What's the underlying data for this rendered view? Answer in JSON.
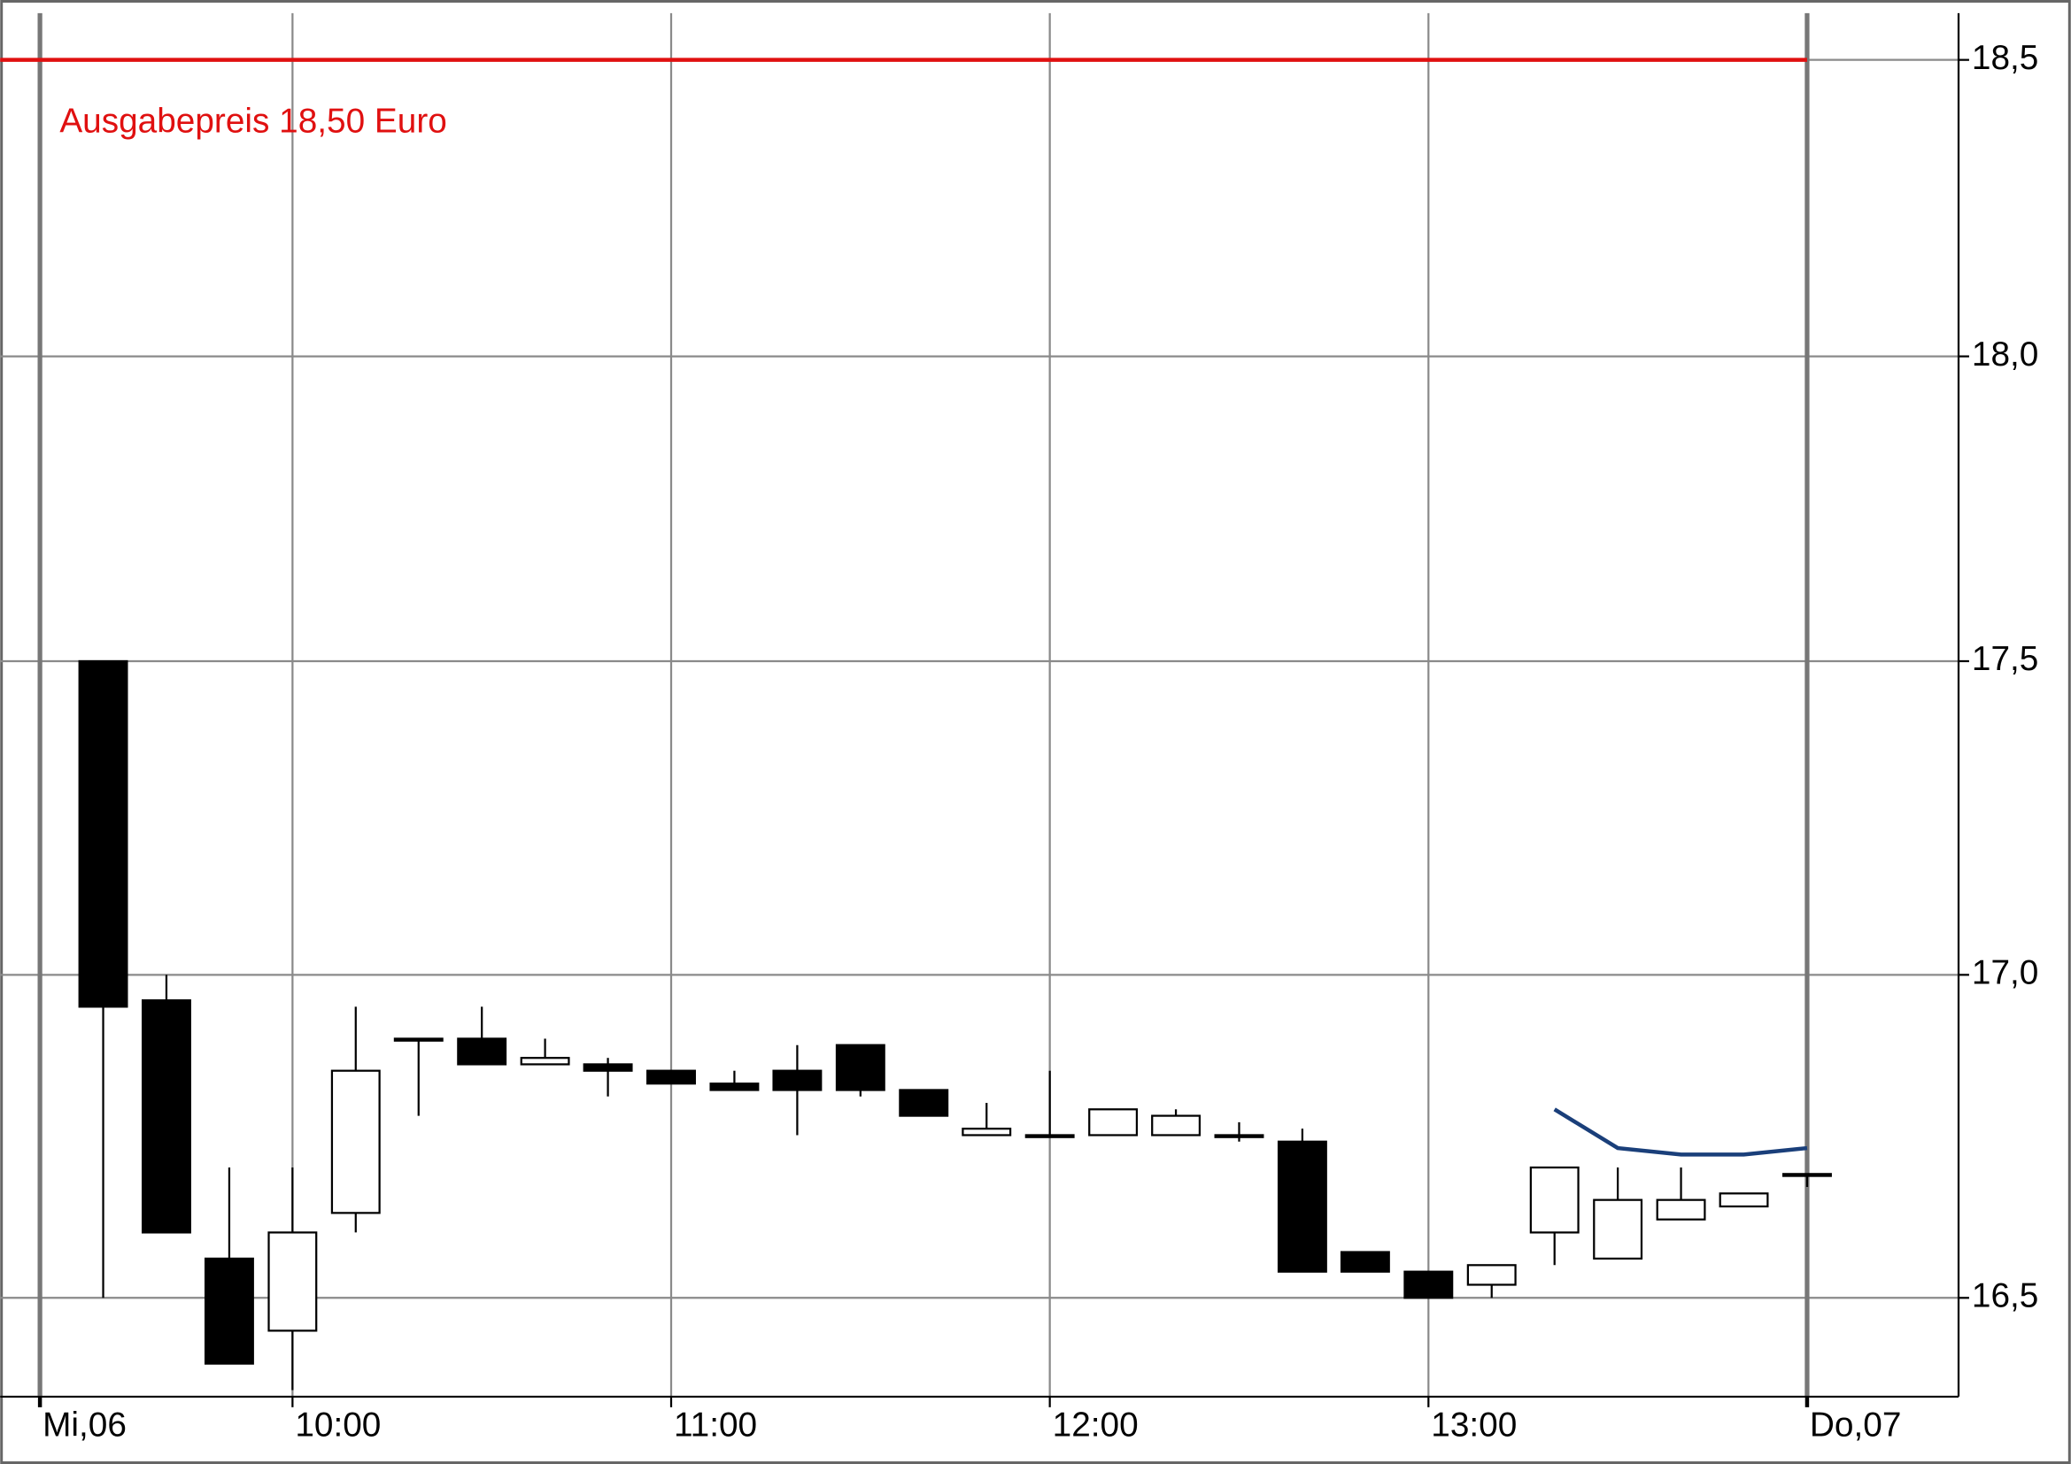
{
  "chart_data": {
    "type": "candlestick",
    "x": [
      9.5,
      9.667,
      9.833,
      10,
      10.167,
      10.333,
      10.5,
      10.667,
      10.833,
      11,
      11.167,
      11.333,
      11.5,
      11.667,
      11.833,
      12,
      12.167,
      12.333,
      12.5,
      12.667,
      12.833,
      13,
      13.167,
      13.333,
      13.5,
      13.667,
      13.833,
      14
    ],
    "open": [
      17.5,
      16.96,
      16.56,
      16.45,
      16.63,
      16.9,
      16.9,
      16.86,
      16.86,
      16.85,
      16.83,
      16.85,
      16.89,
      16.82,
      16.75,
      16.75,
      16.75,
      16.75,
      16.75,
      16.74,
      16.57,
      16.54,
      16.52,
      16.6,
      16.56,
      16.62,
      16.64,
      16.69
    ],
    "high": [
      17.5,
      17.0,
      16.7,
      16.7,
      16.95,
      16.9,
      16.95,
      16.9,
      16.87,
      16.85,
      16.85,
      16.89,
      16.89,
      16.82,
      16.8,
      16.85,
      16.79,
      16.79,
      16.77,
      16.76,
      16.57,
      16.54,
      16.55,
      16.7,
      16.7,
      16.7,
      16.66,
      16.69
    ],
    "low": [
      16.5,
      16.6,
      16.4,
      16.36,
      16.6,
      16.78,
      16.86,
      16.86,
      16.81,
      16.83,
      16.82,
      16.75,
      16.81,
      16.78,
      16.75,
      16.75,
      16.75,
      16.75,
      16.74,
      16.54,
      16.54,
      16.5,
      16.5,
      16.55,
      16.56,
      16.62,
      16.64,
      16.67
    ],
    "close": [
      16.95,
      16.6,
      16.4,
      16.6,
      16.85,
      16.9,
      16.86,
      16.87,
      16.85,
      16.83,
      16.82,
      16.82,
      16.82,
      16.78,
      16.76,
      16.75,
      16.79,
      16.78,
      16.75,
      16.54,
      16.54,
      16.5,
      16.55,
      16.7,
      16.65,
      16.65,
      16.66,
      16.69
    ],
    "up_color": "#ffffff",
    "down_color": "#000000",
    "overlay": {
      "color": "#1a3f7a",
      "x": [
        13.333,
        13.5,
        13.667,
        13.833,
        14
      ],
      "values": [
        16.79,
        16.73,
        16.72,
        16.72,
        16.73
      ]
    },
    "reference_line": {
      "value": 18.5,
      "label": "Ausgabepreis 18,50 Euro",
      "color": "#e01010"
    },
    "xlim": [
      9.228,
      14.4
    ],
    "xticks": [
      {
        "value": 9.333,
        "label": "Mi,06"
      },
      {
        "value": 10,
        "label": "10:00"
      },
      {
        "value": 11,
        "label": "11:00"
      },
      {
        "value": 12,
        "label": "12:00"
      },
      {
        "value": 13,
        "label": "13:00"
      },
      {
        "value": 14,
        "label": "Do,07"
      }
    ],
    "ylim": [
      16.35,
      18.58
    ],
    "yticks": [
      {
        "value": 16.5,
        "label": "16,5"
      },
      {
        "value": 17.0,
        "label": "17,0"
      },
      {
        "value": 17.5,
        "label": "17,5"
      },
      {
        "value": 18.0,
        "label": "18,0"
      },
      {
        "value": 18.5,
        "label": "18,5"
      }
    ],
    "log_scale": true,
    "grid": true
  }
}
